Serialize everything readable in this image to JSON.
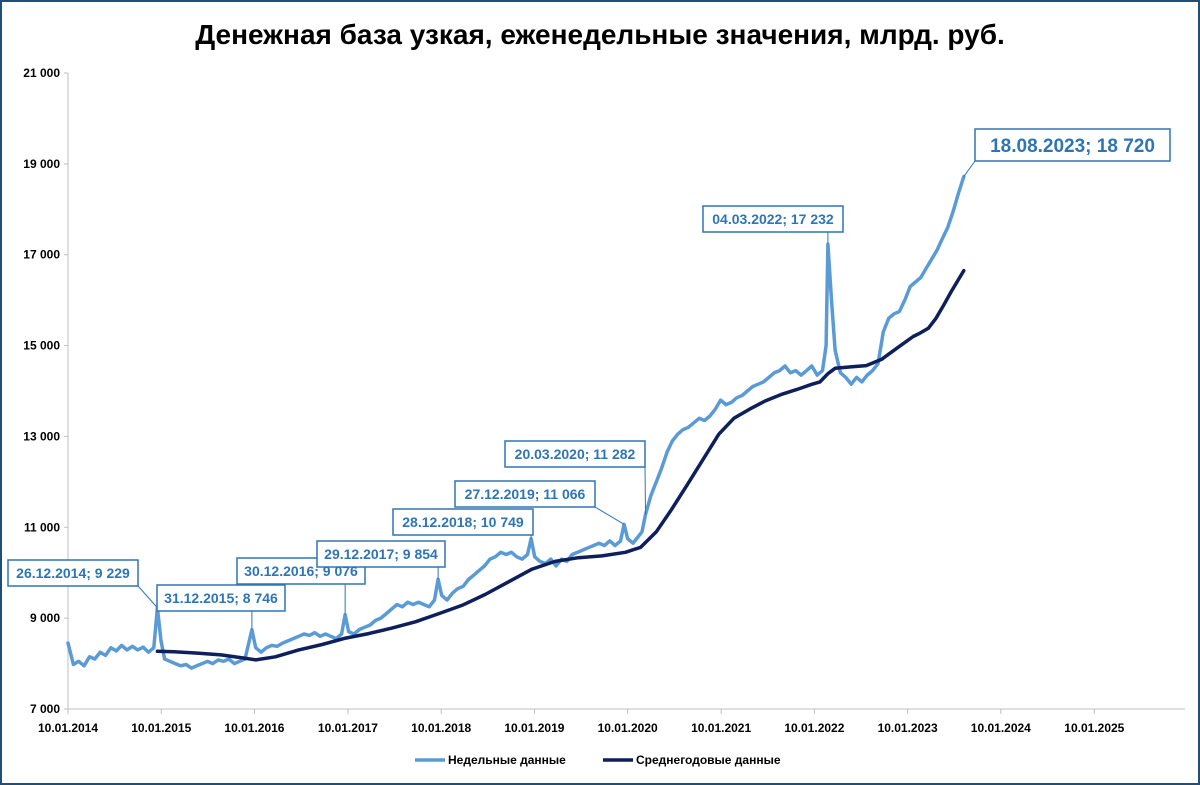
{
  "chart_data": {
    "type": "line",
    "title": "Денежная база узкая, еженедельные значения, млрд. руб.",
    "xlabel": "",
    "ylabel": "",
    "ylim": [
      7000,
      21000
    ],
    "xlim": [
      "2014-01-10",
      "2025-12-31"
    ],
    "grid": false,
    "legend_position": "bottom",
    "y_ticks": [
      "7 000",
      "9 000",
      "11 000",
      "13 000",
      "15 000",
      "17 000",
      "19 000",
      "21 000"
    ],
    "x_ticks": [
      "10.01.2014",
      "10.01.2015",
      "10.01.2016",
      "10.01.2017",
      "10.01.2018",
      "10.01.2019",
      "10.01.2020",
      "10.01.2021",
      "10.01.2022",
      "10.01.2023",
      "10.01.2024",
      "10.01.2025"
    ],
    "series": [
      {
        "name": "Недельные данные",
        "color": "#5b9bd5",
        "points": [
          [
            "2014-01-10",
            8450
          ],
          [
            "2014-01-31",
            7980
          ],
          [
            "2014-02-21",
            8050
          ],
          [
            "2014-03-14",
            7950
          ],
          [
            "2014-04-04",
            8150
          ],
          [
            "2014-04-25",
            8100
          ],
          [
            "2014-05-16",
            8250
          ],
          [
            "2014-06-06",
            8180
          ],
          [
            "2014-06-27",
            8350
          ],
          [
            "2014-07-18",
            8280
          ],
          [
            "2014-08-08",
            8400
          ],
          [
            "2014-08-29",
            8300
          ],
          [
            "2014-09-19",
            8380
          ],
          [
            "2014-10-10",
            8300
          ],
          [
            "2014-10-31",
            8360
          ],
          [
            "2014-11-21",
            8250
          ],
          [
            "2014-12-12",
            8350
          ],
          [
            "2014-12-26",
            9229
          ],
          [
            "2015-01-09",
            8500
          ],
          [
            "2015-01-23",
            8100
          ],
          [
            "2015-02-13",
            8050
          ],
          [
            "2015-03-06",
            8000
          ],
          [
            "2015-03-27",
            7950
          ],
          [
            "2015-04-17",
            7980
          ],
          [
            "2015-05-08",
            7900
          ],
          [
            "2015-05-29",
            7950
          ],
          [
            "2015-06-19",
            8000
          ],
          [
            "2015-07-10",
            8050
          ],
          [
            "2015-07-31",
            8000
          ],
          [
            "2015-08-21",
            8080
          ],
          [
            "2015-09-11",
            8050
          ],
          [
            "2015-10-02",
            8100
          ],
          [
            "2015-10-23",
            8000
          ],
          [
            "2015-11-13",
            8050
          ],
          [
            "2015-12-04",
            8100
          ],
          [
            "2015-12-31",
            8746
          ],
          [
            "2016-01-15",
            8350
          ],
          [
            "2016-02-05",
            8250
          ],
          [
            "2016-02-26",
            8350
          ],
          [
            "2016-03-18",
            8400
          ],
          [
            "2016-04-08",
            8380
          ],
          [
            "2016-04-29",
            8450
          ],
          [
            "2016-05-20",
            8500
          ],
          [
            "2016-06-10",
            8550
          ],
          [
            "2016-07-01",
            8600
          ],
          [
            "2016-07-22",
            8650
          ],
          [
            "2016-08-12",
            8620
          ],
          [
            "2016-09-02",
            8680
          ],
          [
            "2016-09-23",
            8600
          ],
          [
            "2016-10-14",
            8650
          ],
          [
            "2016-11-04",
            8600
          ],
          [
            "2016-11-25",
            8550
          ],
          [
            "2016-12-16",
            8650
          ],
          [
            "2016-12-30",
            9076
          ],
          [
            "2017-01-13",
            8700
          ],
          [
            "2017-02-03",
            8650
          ],
          [
            "2017-02-24",
            8750
          ],
          [
            "2017-03-17",
            8800
          ],
          [
            "2017-04-07",
            8850
          ],
          [
            "2017-04-28",
            8950
          ],
          [
            "2017-05-19",
            9000
          ],
          [
            "2017-06-09",
            9100
          ],
          [
            "2017-06-30",
            9200
          ],
          [
            "2017-07-21",
            9300
          ],
          [
            "2017-08-11",
            9250
          ],
          [
            "2017-09-01",
            9350
          ],
          [
            "2017-09-22",
            9300
          ],
          [
            "2017-10-13",
            9350
          ],
          [
            "2017-11-03",
            9300
          ],
          [
            "2017-11-24",
            9250
          ],
          [
            "2017-12-15",
            9400
          ],
          [
            "2017-12-29",
            9854
          ],
          [
            "2018-01-12",
            9500
          ],
          [
            "2018-02-02",
            9400
          ],
          [
            "2018-02-23",
            9550
          ],
          [
            "2018-03-16",
            9650
          ],
          [
            "2018-04-06",
            9700
          ],
          [
            "2018-04-27",
            9850
          ],
          [
            "2018-05-18",
            9950
          ],
          [
            "2018-06-08",
            10050
          ],
          [
            "2018-06-29",
            10150
          ],
          [
            "2018-07-20",
            10300
          ],
          [
            "2018-08-10",
            10350
          ],
          [
            "2018-08-31",
            10450
          ],
          [
            "2018-09-21",
            10400
          ],
          [
            "2018-10-12",
            10450
          ],
          [
            "2018-11-02",
            10350
          ],
          [
            "2018-11-23",
            10300
          ],
          [
            "2018-12-14",
            10400
          ],
          [
            "2018-12-28",
            10749
          ],
          [
            "2019-01-11",
            10350
          ],
          [
            "2019-02-01",
            10250
          ],
          [
            "2019-02-22",
            10200
          ],
          [
            "2019-03-15",
            10300
          ],
          [
            "2019-04-05",
            10150
          ],
          [
            "2019-04-26",
            10300
          ],
          [
            "2019-05-17",
            10250
          ],
          [
            "2019-06-07",
            10400
          ],
          [
            "2019-06-28",
            10450
          ],
          [
            "2019-07-19",
            10500
          ],
          [
            "2019-08-09",
            10550
          ],
          [
            "2019-08-30",
            10600
          ],
          [
            "2019-09-20",
            10650
          ],
          [
            "2019-10-11",
            10600
          ],
          [
            "2019-11-01",
            10700
          ],
          [
            "2019-11-22",
            10600
          ],
          [
            "2019-12-13",
            10700
          ],
          [
            "2019-12-27",
            11066
          ],
          [
            "2020-01-10",
            10750
          ],
          [
            "2020-01-31",
            10650
          ],
          [
            "2020-02-21",
            10800
          ],
          [
            "2020-03-06",
            10900
          ],
          [
            "2020-03-20",
            11282
          ],
          [
            "2020-04-10",
            11700
          ],
          [
            "2020-05-01",
            12000
          ],
          [
            "2020-05-22",
            12300
          ],
          [
            "2020-06-12",
            12650
          ],
          [
            "2020-07-03",
            12900
          ],
          [
            "2020-07-24",
            13050
          ],
          [
            "2020-08-14",
            13150
          ],
          [
            "2020-09-04",
            13200
          ],
          [
            "2020-09-25",
            13300
          ],
          [
            "2020-10-16",
            13400
          ],
          [
            "2020-11-06",
            13350
          ],
          [
            "2020-11-27",
            13450
          ],
          [
            "2020-12-18",
            13600
          ],
          [
            "2021-01-08",
            13800
          ],
          [
            "2021-01-29",
            13700
          ],
          [
            "2021-02-19",
            13750
          ],
          [
            "2021-03-12",
            13850
          ],
          [
            "2021-04-02",
            13900
          ],
          [
            "2021-04-23",
            14000
          ],
          [
            "2021-05-14",
            14100
          ],
          [
            "2021-06-04",
            14150
          ],
          [
            "2021-06-25",
            14200
          ],
          [
            "2021-07-16",
            14300
          ],
          [
            "2021-08-06",
            14400
          ],
          [
            "2021-08-27",
            14450
          ],
          [
            "2021-09-17",
            14550
          ],
          [
            "2021-10-08",
            14400
          ],
          [
            "2021-10-29",
            14450
          ],
          [
            "2021-11-19",
            14350
          ],
          [
            "2021-12-10",
            14450
          ],
          [
            "2021-12-31",
            14550
          ],
          [
            "2022-01-21",
            14350
          ],
          [
            "2022-02-11",
            14450
          ],
          [
            "2022-02-25",
            15000
          ],
          [
            "2022-03-04",
            17232
          ],
          [
            "2022-03-18",
            16000
          ],
          [
            "2022-04-01",
            14900
          ],
          [
            "2022-04-22",
            14400
          ],
          [
            "2022-05-13",
            14300
          ],
          [
            "2022-06-03",
            14150
          ],
          [
            "2022-06-24",
            14300
          ],
          [
            "2022-07-15",
            14200
          ],
          [
            "2022-08-05",
            14350
          ],
          [
            "2022-08-26",
            14450
          ],
          [
            "2022-09-16",
            14600
          ],
          [
            "2022-10-07",
            15300
          ],
          [
            "2022-10-28",
            15600
          ],
          [
            "2022-11-18",
            15700
          ],
          [
            "2022-12-09",
            15750
          ],
          [
            "2022-12-30",
            16000
          ],
          [
            "2023-01-20",
            16300
          ],
          [
            "2023-02-10",
            16400
          ],
          [
            "2023-03-03",
            16500
          ],
          [
            "2023-03-24",
            16700
          ],
          [
            "2023-04-14",
            16900
          ],
          [
            "2023-05-05",
            17100
          ],
          [
            "2023-05-26",
            17350
          ],
          [
            "2023-06-16",
            17600
          ],
          [
            "2023-07-07",
            17950
          ],
          [
            "2023-07-28",
            18350
          ],
          [
            "2023-08-18",
            18720
          ]
        ]
      },
      {
        "name": "Среднегодовые данные",
        "color": "#0d1f5c",
        "points": [
          [
            "2014-12-26",
            8270
          ],
          [
            "2015-03-01",
            8260
          ],
          [
            "2015-06-01",
            8230
          ],
          [
            "2015-09-01",
            8190
          ],
          [
            "2015-12-01",
            8120
          ],
          [
            "2016-01-15",
            8080
          ],
          [
            "2016-04-01",
            8150
          ],
          [
            "2016-07-01",
            8300
          ],
          [
            "2016-10-01",
            8420
          ],
          [
            "2017-01-01",
            8560
          ],
          [
            "2017-04-01",
            8660
          ],
          [
            "2017-07-01",
            8780
          ],
          [
            "2017-10-01",
            8920
          ],
          [
            "2018-01-01",
            9100
          ],
          [
            "2018-04-01",
            9280
          ],
          [
            "2018-07-01",
            9520
          ],
          [
            "2018-10-01",
            9800
          ],
          [
            "2019-01-01",
            10080
          ],
          [
            "2019-04-01",
            10250
          ],
          [
            "2019-07-01",
            10330
          ],
          [
            "2019-10-01",
            10370
          ],
          [
            "2020-01-01",
            10450
          ],
          [
            "2020-03-01",
            10560
          ],
          [
            "2020-05-01",
            10900
          ],
          [
            "2020-07-01",
            11400
          ],
          [
            "2020-09-01",
            11950
          ],
          [
            "2020-11-01",
            12500
          ],
          [
            "2021-01-01",
            13050
          ],
          [
            "2021-03-01",
            13400
          ],
          [
            "2021-05-01",
            13600
          ],
          [
            "2021-07-01",
            13780
          ],
          [
            "2021-09-01",
            13920
          ],
          [
            "2021-11-01",
            14030
          ],
          [
            "2022-01-01",
            14150
          ],
          [
            "2022-02-01",
            14200
          ],
          [
            "2022-03-04",
            14380
          ],
          [
            "2022-04-01",
            14500
          ],
          [
            "2022-06-01",
            14530
          ],
          [
            "2022-08-01",
            14560
          ],
          [
            "2022-10-01",
            14700
          ],
          [
            "2022-12-01",
            14950
          ],
          [
            "2023-02-01",
            15200
          ],
          [
            "2023-03-01",
            15280
          ],
          [
            "2023-04-01",
            15380
          ],
          [
            "2023-05-01",
            15600
          ],
          [
            "2023-06-01",
            15900
          ],
          [
            "2023-07-01",
            16200
          ],
          [
            "2023-08-18",
            16650
          ]
        ]
      }
    ],
    "annotations": [
      {
        "label": "26.12.2014; 9 229",
        "x": "2014-12-26",
        "y": 9229
      },
      {
        "label": "31.12.2015; 8 746",
        "x": "2015-12-31",
        "y": 8746
      },
      {
        "label": "30.12.2016; 9 076",
        "x": "2016-12-30",
        "y": 9076
      },
      {
        "label": "29.12.2017; 9 854",
        "x": "2017-12-29",
        "y": 9854
      },
      {
        "label": "28.12.2018; 10 749",
        "x": "2018-12-28",
        "y": 10749
      },
      {
        "label": "27.12.2019; 11 066",
        "x": "2019-12-27",
        "y": 11066
      },
      {
        "label": "20.03.2020; 11 282",
        "x": "2020-03-20",
        "y": 11282
      },
      {
        "label": "04.03.2022; 17 232",
        "x": "2022-03-04",
        "y": 17232
      },
      {
        "label": "18.08.2023; 18 720",
        "x": "2023-08-18",
        "y": 18720
      }
    ]
  }
}
